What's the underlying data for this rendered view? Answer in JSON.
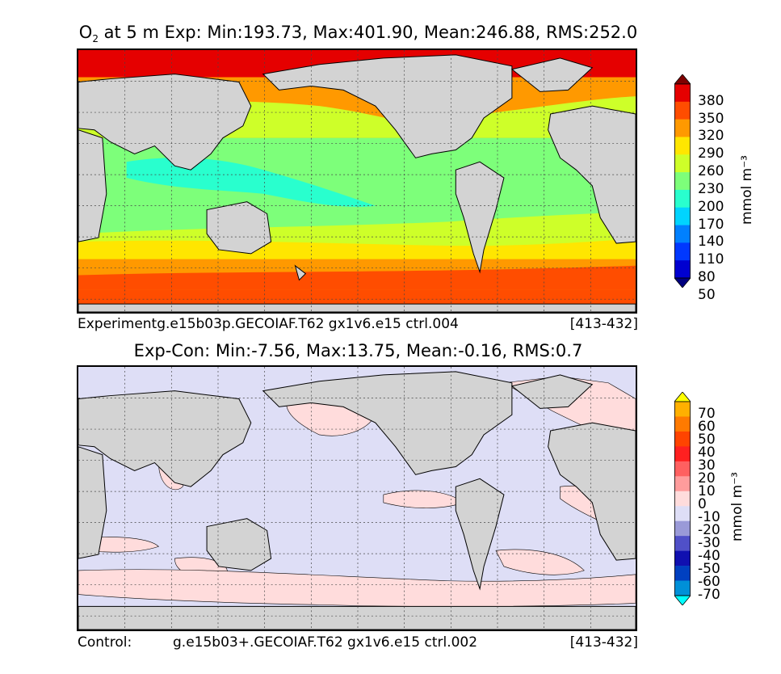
{
  "panel1": {
    "title_pre": "O",
    "title_sub": "2",
    "title_rest": " at 5 m Exp: Min:193.73, Max:401.90, Mean:246.88, RMS:252.0",
    "caption_left": "Experimentg.e15b03p.GECOIAF.T62 gx1v6.e15 ctrl.004",
    "caption_right": "[413-432]",
    "colorbar_label": "mmol m⁻³",
    "colorbar_ticks": [
      "50",
      "80",
      "110",
      "140",
      "170",
      "200",
      "230",
      "260",
      "290",
      "320",
      "350",
      "380"
    ],
    "colorbar_colors": [
      "#00007f",
      "#0000d0",
      "#0038ff",
      "#0080ff",
      "#00d4ff",
      "#29ffce",
      "#7dff7a",
      "#ceff29",
      "#ffe600",
      "#ff9900",
      "#ff4d00",
      "#e50000",
      "#7f0000"
    ],
    "colors": {
      "land": "#d3d3d3",
      "tropics": "#29ffce",
      "midlat": "#7dff7a",
      "subpolar": "#ceff29",
      "yellow": "#ffe600",
      "orange": "#ff9900",
      "redorange": "#ff4d00",
      "red": "#e50000"
    }
  },
  "panel2": {
    "title": "Exp-Con: Min:-7.56, Max:13.75, Mean:-0.16, RMS:0.7",
    "caption_left": "Control:",
    "caption_mid": "g.e15b03+.GECOIAF.T62 gx1v6.e15 ctrl.002",
    "caption_right": "[413-432]",
    "colorbar_label": "mmol m⁻³",
    "colorbar_ticks": [
      "70",
      "60",
      "50",
      "40",
      "30",
      "20",
      "10",
      "0",
      "-10",
      "-20",
      "-30",
      "-40",
      "-50",
      "-60",
      "-70"
    ],
    "colorbar_colors": [
      "#ffff00",
      "#ffb000",
      "#ff7a00",
      "#ff4400",
      "#ff2020",
      "#ff6060",
      "#ff9c9c",
      "#ffdcdc",
      "#dedef6",
      "#9a9ad8",
      "#5050c8",
      "#1010b0",
      "#0040c0",
      "#0090d8",
      "#00ffff"
    ],
    "colors": {
      "land": "#d3d3d3",
      "ocean": "#dedef6",
      "positive": "#ffdcdc"
    }
  }
}
